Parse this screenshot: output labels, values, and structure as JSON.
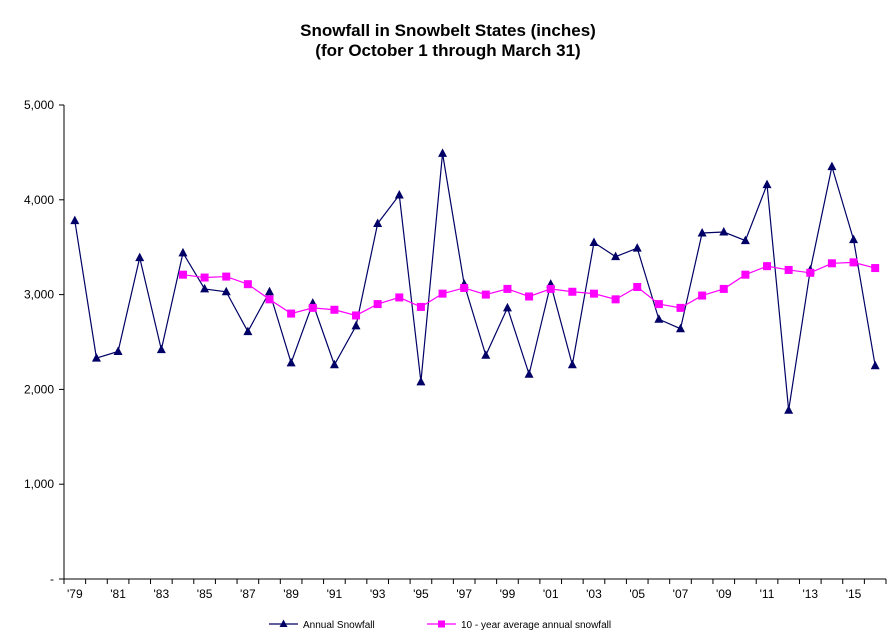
{
  "chart_data": {
    "type": "line",
    "title": "Snowfall in Snowbelt States (inches)",
    "subtitle": "(for October 1 through March 31)",
    "xlabel": "",
    "ylabel": "",
    "x": [
      "'79",
      "'80",
      "'81",
      "'82",
      "'83",
      "'84",
      "'85",
      "'86",
      "'87",
      "'88",
      "'89",
      "'90",
      "'91",
      "'92",
      "'93",
      "'94",
      "'95",
      "'96",
      "'97",
      "'98",
      "'99",
      "'00",
      "'01",
      "'02",
      "'03",
      "'04",
      "'05",
      "'06",
      "'07",
      "'08",
      "'09",
      "'10",
      "'11",
      "'12",
      "'13",
      "'14",
      "'15",
      "'16"
    ],
    "x_tick_labels": [
      "'79",
      "'81",
      "'83",
      "'85",
      "'87",
      "'89",
      "'91",
      "'93",
      "'95",
      "'97",
      "'99",
      "'01",
      "'03",
      "'05",
      "'07",
      "'09",
      "'11",
      "'13",
      "'15"
    ],
    "ylim": [
      0,
      5000
    ],
    "y_ticks": [
      0,
      1000,
      2000,
      3000,
      4000,
      5000
    ],
    "y_tick_labels": [
      "-",
      "1,000",
      "2,000",
      "3,000",
      "4,000",
      "5,000"
    ],
    "grid": false,
    "legend_position": "bottom",
    "series": [
      {
        "name": "Annual Snowfall",
        "color": "#000066",
        "marker": "triangle",
        "values": [
          3780,
          2330,
          2400,
          3390,
          2420,
          3440,
          3060,
          3030,
          2610,
          3030,
          2280,
          2910,
          2260,
          2670,
          3750,
          4050,
          2080,
          4490,
          3110,
          2360,
          2860,
          2160,
          3110,
          2260,
          3550,
          3400,
          3490,
          2740,
          2640,
          3650,
          3660,
          3570,
          4160,
          1780,
          3260,
          4350,
          3580,
          2250
        ]
      },
      {
        "name": "10 - year average annual snowfall",
        "color": "#ff00ff",
        "marker": "square",
        "values": [
          null,
          null,
          null,
          null,
          null,
          3210,
          3180,
          3190,
          3110,
          2950,
          2800,
          2860,
          2840,
          2780,
          2900,
          2970,
          2870,
          3010,
          3070,
          3000,
          3060,
          2980,
          3060,
          3030,
          3010,
          2950,
          3080,
          2900,
          2860,
          2990,
          3060,
          3210,
          3300,
          3260,
          3230,
          3330,
          3340,
          3280
        ]
      }
    ]
  }
}
